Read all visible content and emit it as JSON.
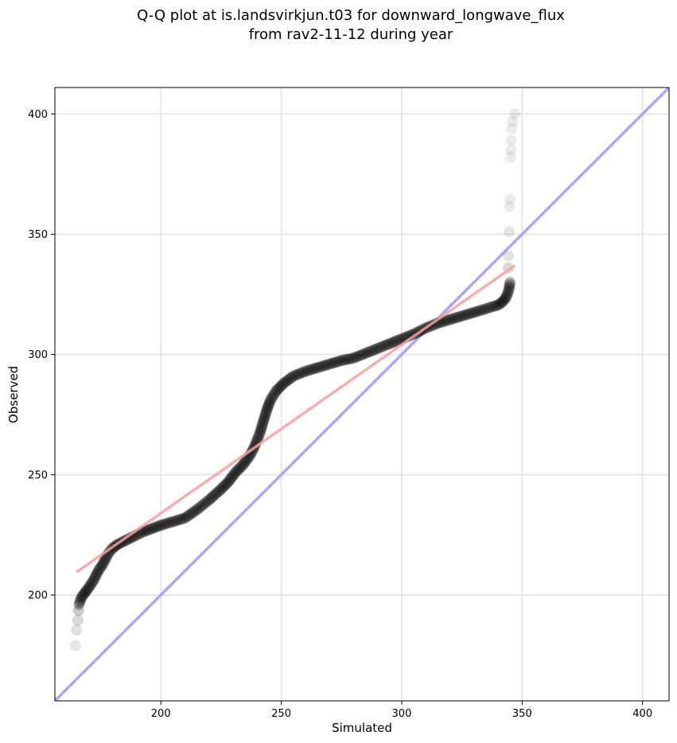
{
  "chart_data": {
    "type": "scatter",
    "title_line1": "Q-Q plot at is.landsvirkjun.t03 for downward_longwave_flux",
    "title_line2": "from rav2-11-12 during year",
    "xlabel": "Simulated",
    "ylabel": "Observed",
    "xlim": [
      156,
      411
    ],
    "ylim": [
      156,
      411
    ],
    "xticks": [
      200,
      250,
      300,
      350,
      400
    ],
    "yticks": [
      200,
      250,
      300,
      350,
      400
    ],
    "xtick_labels": [
      "200",
      "250",
      "300",
      "350",
      "400"
    ],
    "ytick_labels": [
      "200",
      "250",
      "300",
      "350",
      "400"
    ],
    "grid": true,
    "colors": {
      "points": "#000000",
      "fit_line": "#f4a0a0",
      "identity_line": "#a8a8f4",
      "grid": "#e6e6e6"
    },
    "fit_line": {
      "x": [
        165,
        347
      ],
      "y": [
        209.5,
        337
      ]
    },
    "identity_line": {
      "x": [
        156,
        411
      ],
      "y": [
        156,
        411
      ]
    },
    "qq_curve": [
      [
        166,
        196
      ],
      [
        167,
        199
      ],
      [
        168.5,
        201
      ],
      [
        170,
        203
      ],
      [
        172,
        206
      ],
      [
        174,
        210
      ],
      [
        176,
        213
      ],
      [
        178,
        217
      ],
      [
        180,
        219.5
      ],
      [
        182,
        221
      ],
      [
        185,
        222.5
      ],
      [
        188,
        224
      ],
      [
        192,
        226
      ],
      [
        196,
        227.5
      ],
      [
        200,
        229
      ],
      [
        205,
        230.5
      ],
      [
        210,
        232
      ],
      [
        215,
        235.5
      ],
      [
        220,
        239.5
      ],
      [
        225,
        244
      ],
      [
        228,
        247
      ],
      [
        231,
        251
      ],
      [
        234,
        254
      ],
      [
        237,
        258
      ],
      [
        239,
        262
      ],
      [
        241,
        267
      ],
      [
        242.5,
        272
      ],
      [
        244,
        277
      ],
      [
        245.5,
        281
      ],
      [
        248,
        285
      ],
      [
        251,
        288
      ],
      [
        255,
        291
      ],
      [
        260,
        293
      ],
      [
        265,
        294.5
      ],
      [
        270,
        296
      ],
      [
        275,
        297.5
      ],
      [
        280,
        298.5
      ],
      [
        285,
        300.5
      ],
      [
        290,
        302.5
      ],
      [
        295,
        304.5
      ],
      [
        300,
        306.5
      ],
      [
        305,
        308.5
      ],
      [
        310,
        311
      ],
      [
        315,
        313
      ],
      [
        320,
        314.5
      ],
      [
        325,
        316
      ],
      [
        330,
        317.5
      ],
      [
        335,
        319
      ],
      [
        338,
        320
      ],
      [
        340,
        320.5
      ],
      [
        342,
        322
      ],
      [
        343.5,
        324
      ],
      [
        344.5,
        327
      ],
      [
        345,
        330
      ]
    ],
    "tail_points": [
      {
        "x": 164.5,
        "y": 179,
        "alpha": 0.1
      },
      {
        "x": 165,
        "y": 185.5,
        "alpha": 0.12
      },
      {
        "x": 165.5,
        "y": 189.5,
        "alpha": 0.15
      },
      {
        "x": 165.8,
        "y": 193.5,
        "alpha": 0.2
      },
      {
        "x": 344.3,
        "y": 336,
        "alpha": 0.15
      },
      {
        "x": 344.4,
        "y": 341,
        "alpha": 0.1
      },
      {
        "x": 344.6,
        "y": 351,
        "alpha": 0.1
      },
      {
        "x": 344.8,
        "y": 361.5,
        "alpha": 0.08
      },
      {
        "x": 345,
        "y": 364.5,
        "alpha": 0.08
      },
      {
        "x": 345.2,
        "y": 382,
        "alpha": 0.08
      },
      {
        "x": 345.3,
        "y": 385,
        "alpha": 0.08
      },
      {
        "x": 345.5,
        "y": 389,
        "alpha": 0.08
      },
      {
        "x": 345.7,
        "y": 394,
        "alpha": 0.08
      },
      {
        "x": 346,
        "y": 397,
        "alpha": 0.08
      },
      {
        "x": 347,
        "y": 400,
        "alpha": 0.08
      }
    ]
  }
}
